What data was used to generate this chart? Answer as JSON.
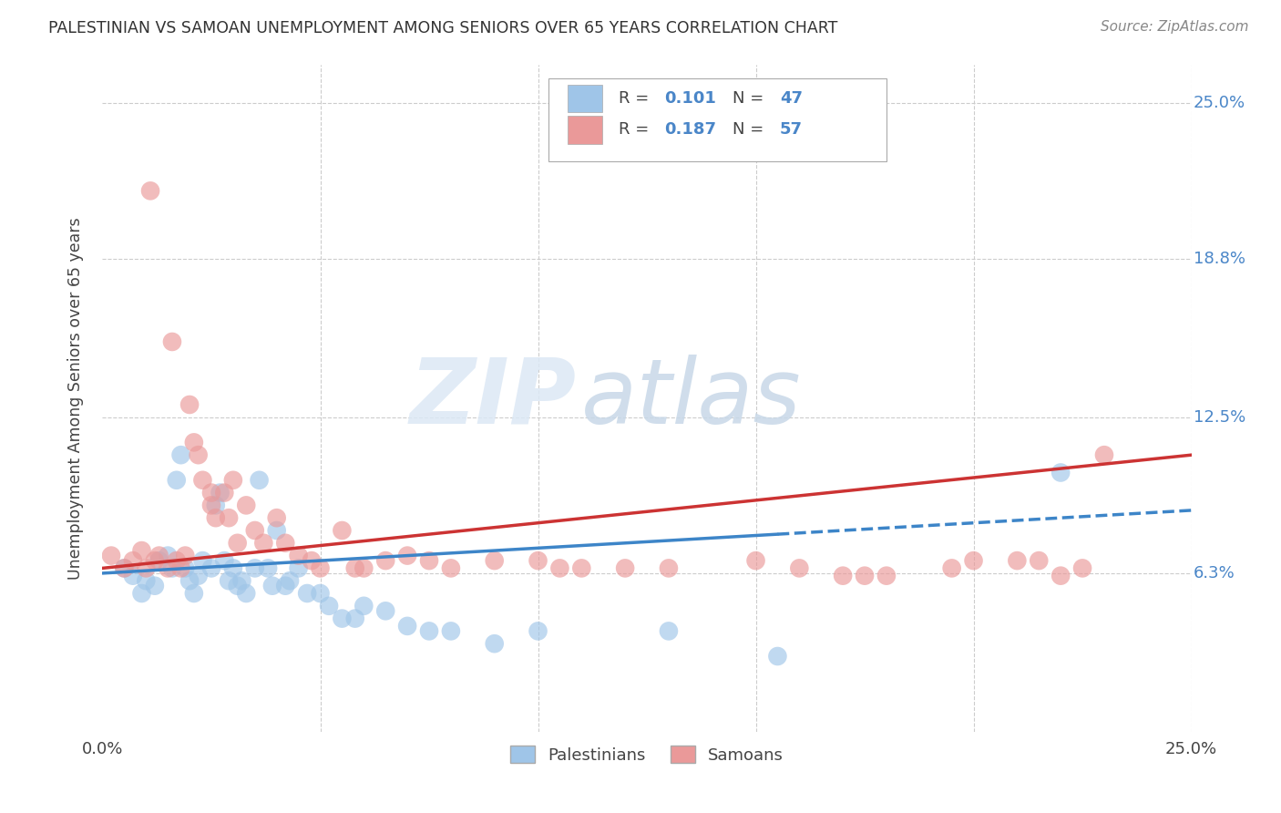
{
  "title": "PALESTINIAN VS SAMOAN UNEMPLOYMENT AMONG SENIORS OVER 65 YEARS CORRELATION CHART",
  "source": "Source: ZipAtlas.com",
  "ylabel": "Unemployment Among Seniors over 65 years",
  "xmin": 0.0,
  "xmax": 0.25,
  "ymin": 0.0,
  "ymax": 0.265,
  "ytick_values": [
    0.0,
    0.063,
    0.125,
    0.188,
    0.25
  ],
  "ytick_labels": [
    "",
    "6.3%",
    "12.5%",
    "18.8%",
    "25.0%"
  ],
  "xtick_values": [
    0.0,
    0.05,
    0.1,
    0.15,
    0.2,
    0.25
  ],
  "xtick_labels": [
    "0.0%",
    "",
    "",
    "",
    "",
    "25.0%"
  ],
  "legend_r1": "0.101",
  "legend_n1": "47",
  "legend_r2": "0.187",
  "legend_n2": "57",
  "blue_scatter_color": "#9fc5e8",
  "pink_scatter_color": "#ea9999",
  "blue_line_color": "#3d85c8",
  "pink_line_color": "#cc3333",
  "watermark_zip": "ZIP",
  "watermark_atlas": "atlas",
  "palestinians_x": [
    0.005,
    0.007,
    0.009,
    0.01,
    0.012,
    0.013,
    0.015,
    0.016,
    0.017,
    0.018,
    0.019,
    0.02,
    0.021,
    0.022,
    0.023,
    0.025,
    0.026,
    0.027,
    0.028,
    0.029,
    0.03,
    0.031,
    0.032,
    0.033,
    0.035,
    0.036,
    0.038,
    0.039,
    0.04,
    0.042,
    0.043,
    0.045,
    0.047,
    0.05,
    0.052,
    0.055,
    0.058,
    0.06,
    0.065,
    0.07,
    0.075,
    0.08,
    0.09,
    0.1,
    0.13,
    0.155,
    0.22
  ],
  "palestinians_y": [
    0.065,
    0.062,
    0.055,
    0.06,
    0.058,
    0.068,
    0.07,
    0.065,
    0.1,
    0.11,
    0.065,
    0.06,
    0.055,
    0.062,
    0.068,
    0.065,
    0.09,
    0.095,
    0.068,
    0.06,
    0.065,
    0.058,
    0.06,
    0.055,
    0.065,
    0.1,
    0.065,
    0.058,
    0.08,
    0.058,
    0.06,
    0.065,
    0.055,
    0.055,
    0.05,
    0.045,
    0.045,
    0.05,
    0.048,
    0.042,
    0.04,
    0.04,
    0.035,
    0.04,
    0.04,
    0.03,
    0.103
  ],
  "samoans_x": [
    0.002,
    0.005,
    0.007,
    0.009,
    0.01,
    0.011,
    0.012,
    0.013,
    0.015,
    0.016,
    0.017,
    0.018,
    0.019,
    0.02,
    0.021,
    0.022,
    0.023,
    0.025,
    0.025,
    0.026,
    0.028,
    0.029,
    0.03,
    0.031,
    0.033,
    0.035,
    0.037,
    0.04,
    0.042,
    0.045,
    0.048,
    0.05,
    0.055,
    0.058,
    0.06,
    0.065,
    0.07,
    0.075,
    0.08,
    0.09,
    0.1,
    0.105,
    0.11,
    0.12,
    0.13,
    0.15,
    0.16,
    0.17,
    0.175,
    0.18,
    0.195,
    0.2,
    0.21,
    0.215,
    0.22,
    0.225,
    0.23
  ],
  "samoans_y": [
    0.07,
    0.065,
    0.068,
    0.072,
    0.065,
    0.215,
    0.068,
    0.07,
    0.065,
    0.155,
    0.068,
    0.065,
    0.07,
    0.13,
    0.115,
    0.11,
    0.1,
    0.09,
    0.095,
    0.085,
    0.095,
    0.085,
    0.1,
    0.075,
    0.09,
    0.08,
    0.075,
    0.085,
    0.075,
    0.07,
    0.068,
    0.065,
    0.08,
    0.065,
    0.065,
    0.068,
    0.07,
    0.068,
    0.065,
    0.068,
    0.068,
    0.065,
    0.065,
    0.065,
    0.065,
    0.068,
    0.065,
    0.062,
    0.062,
    0.062,
    0.065,
    0.068,
    0.068,
    0.068,
    0.062,
    0.065,
    0.11
  ]
}
